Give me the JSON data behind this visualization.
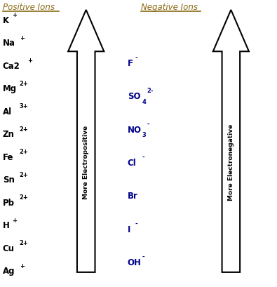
{
  "title_left": "Positive Ions",
  "title_right": "Negative Ions",
  "positive_ions": [
    "K+",
    "Na+",
    "Ca2+",
    "Mg2+",
    "Al3+",
    "Zn2+",
    "Fe2+",
    "Sn2+",
    "Pb2+",
    "H+",
    "Cu2+",
    "Ag+"
  ],
  "pos_ion_superscripts": [
    "+",
    "+",
    "+",
    "2+",
    "3+",
    "2+",
    "2+",
    "2+",
    "2+",
    "+",
    "2+",
    "+"
  ],
  "pos_ion_bases": [
    "K",
    "Na",
    "Ca2",
    "Mg",
    "Al",
    "Zn",
    "Fe",
    "Sn",
    "Pb",
    "H",
    "Cu",
    "Ag"
  ],
  "negative_ions": [
    "F-",
    "SO42-",
    "NO3-",
    "Cl-",
    "Br",
    "I-",
    "OH-"
  ],
  "neg_ion_bases": [
    "F",
    "SO4",
    "NO3",
    "Cl",
    "Br",
    "I",
    "OH"
  ],
  "neg_ion_superscripts": [
    "-",
    "2-",
    "-",
    "-",
    "",
    "-",
    "-"
  ],
  "neg_subscripts": [
    "",
    "4",
    "3",
    "",
    "",
    "",
    ""
  ],
  "left_arrow_label": "More Electropositive",
  "right_arrow_label": "More Electronegative",
  "title_color": "#8B6914",
  "ion_color_left": "#000000",
  "ion_color_right": "#00008B",
  "arrow_edge_color": "#000000",
  "arrow_face_color": "#ffffff",
  "bg_color": "#ffffff",
  "figsize": [
    3.95,
    4.1
  ],
  "dpi": 100
}
